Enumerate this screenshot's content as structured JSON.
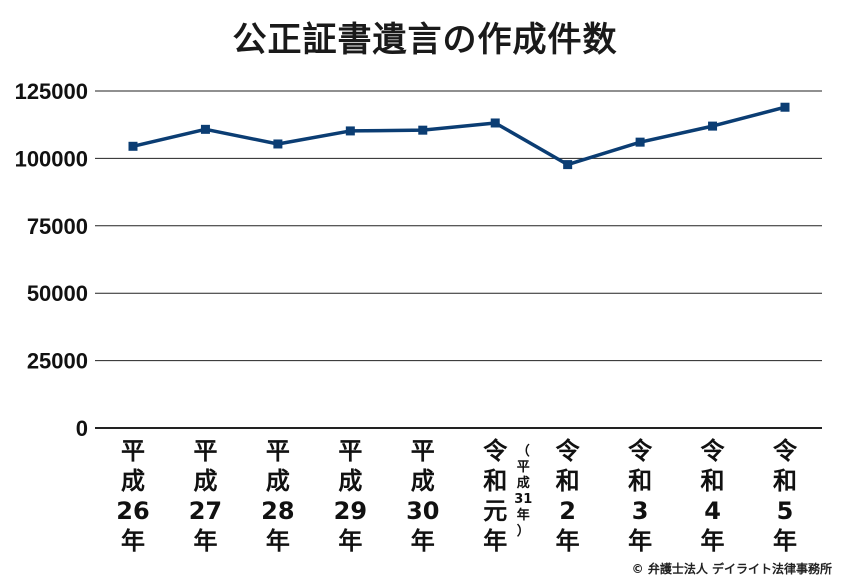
{
  "page_title": "公正証書遺言の作成件数",
  "copyright": "© 弁護士法人 デイライト法律事務所",
  "colors": {
    "line": "#0b3d73",
    "marker": "#0b3d73",
    "grid": "#222222"
  },
  "chart_data": {
    "type": "line",
    "title": "公正証書遺言の作成件数",
    "xlabel": "",
    "ylabel": "",
    "ylim": [
      0,
      125000
    ],
    "yticks": [
      0,
      25000,
      50000,
      75000,
      100000,
      125000
    ],
    "grid": true,
    "categories": [
      {
        "lines": [
          "平",
          "成",
          "26",
          "年"
        ],
        "note": []
      },
      {
        "lines": [
          "平",
          "成",
          "27",
          "年"
        ],
        "note": []
      },
      {
        "lines": [
          "平",
          "成",
          "28",
          "年"
        ],
        "note": []
      },
      {
        "lines": [
          "平",
          "成",
          "29",
          "年"
        ],
        "note": []
      },
      {
        "lines": [
          "平",
          "成",
          "30",
          "年"
        ],
        "note": []
      },
      {
        "lines": [
          "令",
          "和",
          "元",
          "年"
        ],
        "note": [
          "（",
          "平",
          "成",
          "31",
          "年",
          "）"
        ]
      },
      {
        "lines": [
          "令",
          "和",
          "2",
          "年"
        ],
        "note": []
      },
      {
        "lines": [
          "令",
          "和",
          "3",
          "年"
        ],
        "note": []
      },
      {
        "lines": [
          "令",
          "和",
          "4",
          "年"
        ],
        "note": []
      },
      {
        "lines": [
          "令",
          "和",
          "5",
          "年"
        ],
        "note": []
      }
    ],
    "series": [
      {
        "values": [
          104490,
          110778,
          105350,
          110191,
          110471,
          113137,
          97700,
          106028,
          111977,
          118981
        ]
      }
    ]
  }
}
